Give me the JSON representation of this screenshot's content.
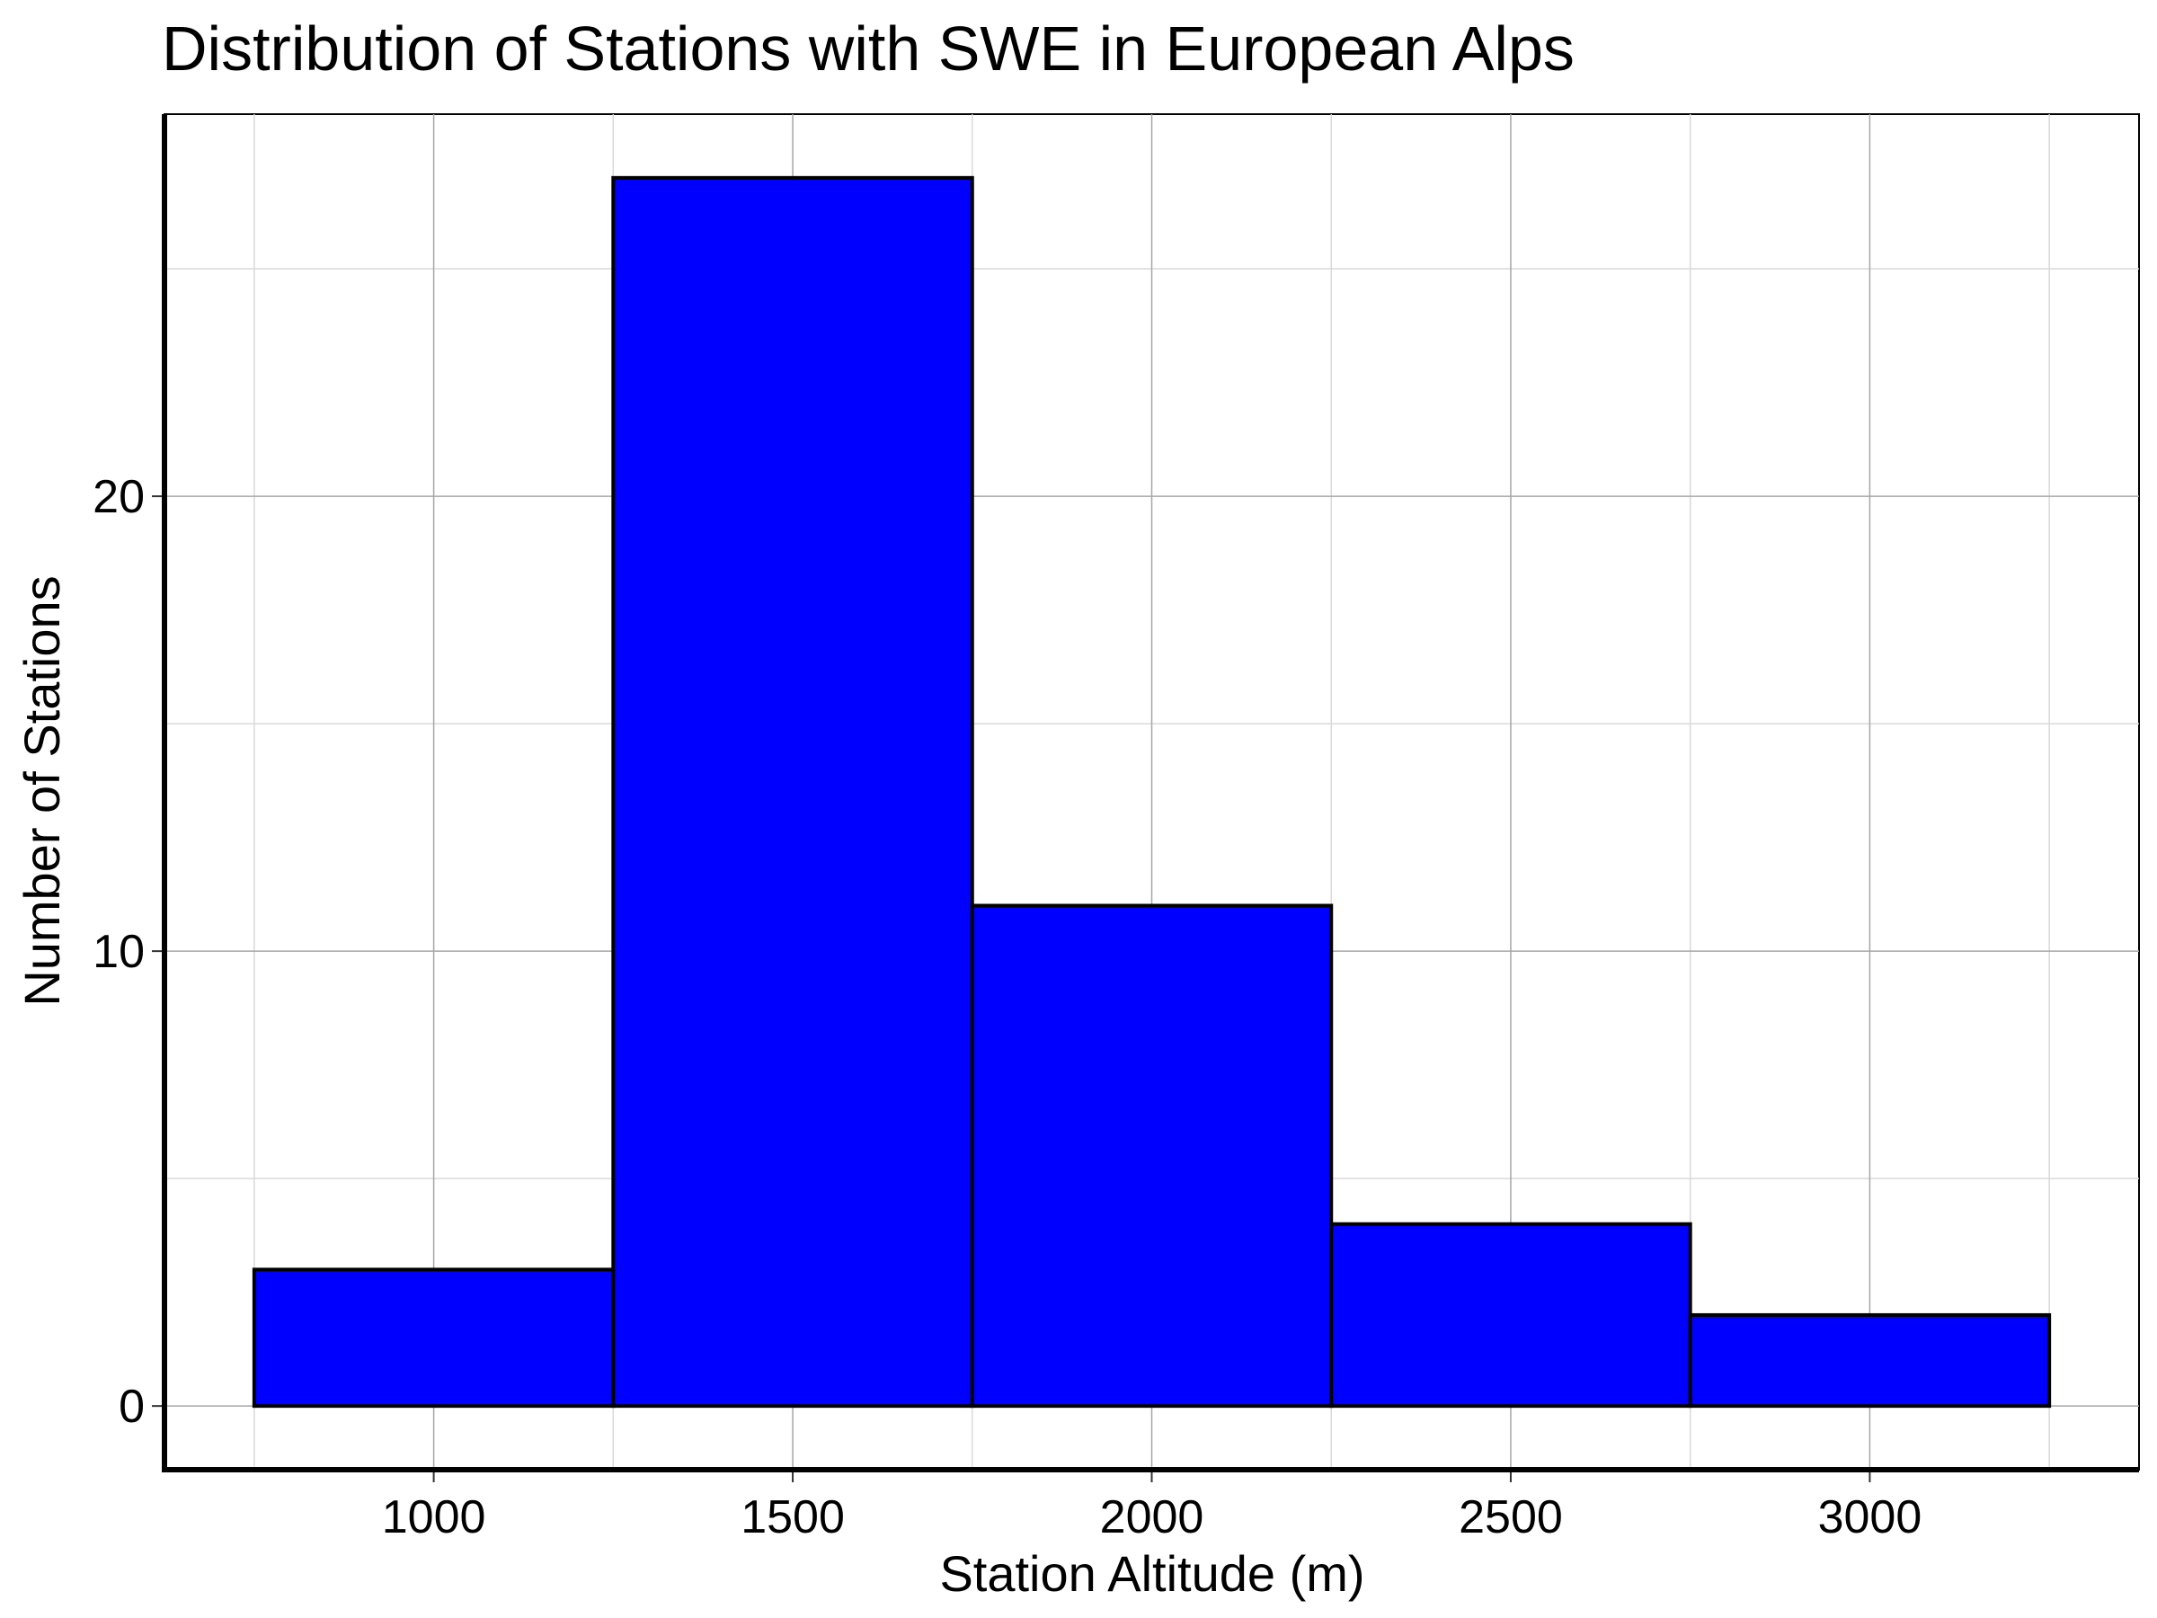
{
  "chart_data": {
    "type": "bar",
    "title": "Distribution of Stations with SWE in European Alps",
    "xlabel": "Station Altitude (m)",
    "ylabel": "Number of Stations",
    "bins": [
      {
        "start": 750,
        "end": 1250,
        "value": 3
      },
      {
        "start": 1250,
        "end": 1750,
        "value": 27
      },
      {
        "start": 1750,
        "end": 2250,
        "value": 11
      },
      {
        "start": 2250,
        "end": 2750,
        "value": 4
      },
      {
        "start": 2750,
        "end": 3250,
        "value": 2
      }
    ],
    "x_ticks": [
      1000,
      1500,
      2000,
      2500,
      3000
    ],
    "y_ticks": [
      0,
      10,
      20
    ],
    "xlim": [
      625,
      3375
    ],
    "ylim": [
      -1.4,
      28.4
    ],
    "x_minor_grid": [
      750,
      1250,
      1750,
      2250,
      2750,
      3250
    ],
    "y_minor_grid": [
      5,
      15,
      25
    ],
    "grid": true,
    "bar_color": "#0000ff",
    "bar_edge_color": "#000000"
  }
}
